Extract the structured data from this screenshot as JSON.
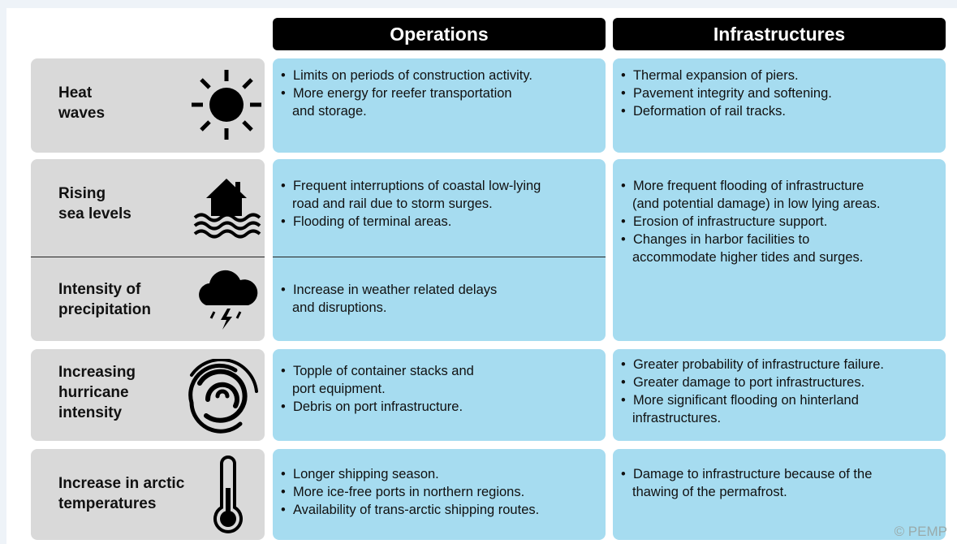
{
  "headers": [
    "Operations",
    "Infrastructures"
  ],
  "rows": [
    {
      "label": "Heat\nwaves",
      "operations": [
        "Limits on periods of construction activity.",
        "More energy for reefer transportation\nand storage."
      ],
      "infrastructures": [
        "Thermal expansion of piers.",
        "Pavement integrity and softening.",
        "Deformation of rail tracks."
      ]
    },
    {
      "label": "Rising\nsea levels",
      "operations": [
        "Frequent interruptions of coastal low-lying\nroad and rail due to storm surges.",
        "Flooding of terminal areas."
      ],
      "infrastructures": [
        "More frequent flooding of infrastructure\n(and potential damage) in low lying areas.",
        "Erosion of infrastructure support.",
        "Changes in harbor facilities to\naccommodate higher tides and surges."
      ]
    },
    {
      "label": "Intensity of\nprecipitation",
      "operations": [
        "Increase in weather related delays\nand disruptions."
      ]
    },
    {
      "label": "Increasing\nhurricane\nintensity",
      "operations": [
        "Topple of container stacks and\nport equipment.",
        "Debris on port infrastructure."
      ],
      "infrastructures": [
        "Greater probability of infrastructure failure.",
        "Greater damage to port infrastructures.",
        "More significant flooding on hinterland\ninfrastructures."
      ]
    },
    {
      "label": "Increase in arctic\ntemperatures",
      "operations": [
        "Longer shipping season.",
        "More ice-free ports in northern regions.",
        "Availability of trans-arctic shipping routes."
      ],
      "infrastructures": [
        "Damage to infrastructure because of the\nthawing of the permafrost."
      ]
    }
  ],
  "credit": "© PEMP"
}
